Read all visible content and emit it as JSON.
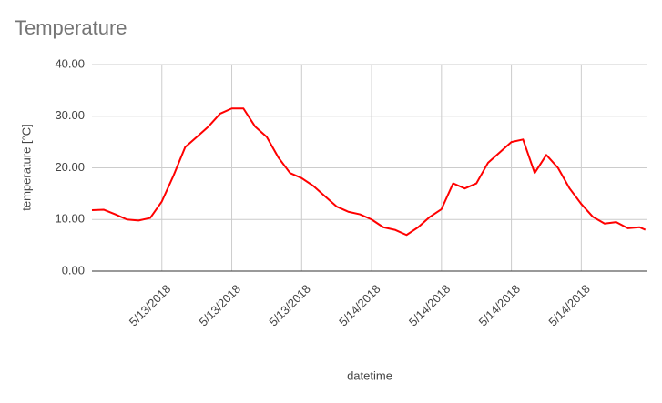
{
  "chart_data": {
    "type": "line",
    "title": "Temperature",
    "x_label": "datetime",
    "y_label": "temperature [°C]",
    "x": [
      0,
      1,
      2,
      3,
      4,
      5,
      6,
      7,
      8,
      9,
      10,
      11,
      12,
      13,
      14,
      15,
      16,
      17,
      18,
      19,
      20,
      21,
      22,
      23,
      24,
      25,
      26,
      27,
      28,
      29,
      30,
      31,
      32,
      33,
      34,
      35,
      36,
      37,
      38,
      39,
      40,
      41,
      42,
      43,
      44,
      45,
      46,
      47,
      47.5
    ],
    "series": [
      {
        "name": "temperature",
        "color": "#ff0000",
        "values": [
          11.8,
          11.9,
          11.0,
          10.0,
          9.8,
          10.3,
          13.5,
          18.5,
          24,
          26,
          28,
          30.5,
          31.5,
          31.5,
          28,
          26,
          22,
          19,
          18,
          16.5,
          14.5,
          12.5,
          11.5,
          11.0,
          10,
          8.5,
          8,
          7,
          8.5,
          10.5,
          12,
          17,
          16,
          17,
          21,
          23,
          25,
          25.5,
          19,
          22.5,
          20,
          16,
          13,
          10.5,
          9.2,
          9.5,
          8.3,
          8.5,
          8
        ]
      }
    ],
    "xlim": [
      0,
      47.6
    ],
    "xticks": [
      {
        "value": 6,
        "label": "5/13/2018"
      },
      {
        "value": 12,
        "label": "5/13/2018"
      },
      {
        "value": 18,
        "label": "5/13/2018"
      },
      {
        "value": 24,
        "label": "5/14/2018"
      },
      {
        "value": 30,
        "label": "5/14/2018"
      },
      {
        "value": 36,
        "label": "5/14/2018"
      },
      {
        "value": 42,
        "label": "5/14/2018"
      }
    ],
    "ylim": [
      0,
      40
    ],
    "yticks": [
      {
        "value": 0,
        "label": "0.00"
      },
      {
        "value": 10,
        "label": "10.00"
      },
      {
        "value": 20,
        "label": "20.00"
      },
      {
        "value": 30,
        "label": "30.00"
      },
      {
        "value": 40,
        "label": "40.00"
      }
    ],
    "grid": true
  }
}
